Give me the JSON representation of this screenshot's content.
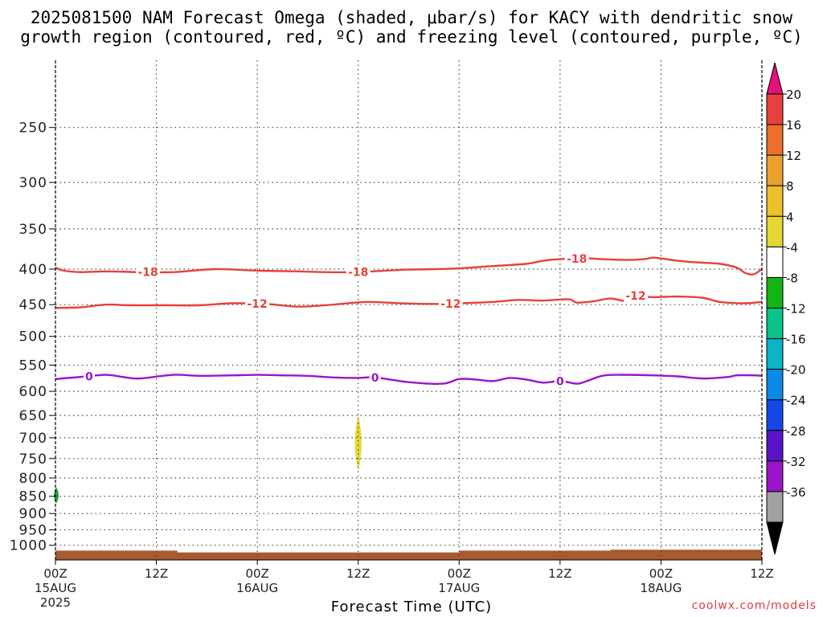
{
  "title": {
    "line1": "2025081500 NAM Forecast Omega (shaded, μbar/s) for KACY with dendritic snow",
    "line2": "growth region (contoured, red, ºC) and freezing level (contoured, purple, ºC)"
  },
  "chart_data": {
    "type": "contour",
    "xlabel": "Forecast Time (UTC)",
    "ylabel": "",
    "x_range_hours": [
      0,
      84
    ],
    "y_scale": "log-pressure",
    "y_range_hPa": [
      1050,
      200
    ],
    "y_ticks": [
      250,
      300,
      350,
      400,
      450,
      500,
      550,
      600,
      650,
      700,
      750,
      800,
      850,
      900,
      950,
      1000
    ],
    "x_ticks": [
      {
        "hour": 0,
        "label": "00Z",
        "date": "15AUG",
        "year": "2025"
      },
      {
        "hour": 12,
        "label": "12Z",
        "date": "",
        "year": ""
      },
      {
        "hour": 24,
        "label": "00Z",
        "date": "16AUG",
        "year": ""
      },
      {
        "hour": 36,
        "label": "12Z",
        "date": "",
        "year": ""
      },
      {
        "hour": 48,
        "label": "00Z",
        "date": "17AUG",
        "year": ""
      },
      {
        "hour": 60,
        "label": "12Z",
        "date": "",
        "year": ""
      },
      {
        "hour": 72,
        "label": "00Z",
        "date": "18AUG",
        "year": ""
      },
      {
        "hour": 84,
        "label": "12Z",
        "date": "",
        "year": ""
      }
    ],
    "grid": true,
    "contours": [
      {
        "value": -18,
        "label": "-18",
        "color": "#e8403c",
        "points": [
          [
            0,
            398
          ],
          [
            1,
            402
          ],
          [
            3,
            404
          ],
          [
            6,
            403
          ],
          [
            10,
            404
          ],
          [
            14,
            404
          ],
          [
            19,
            400
          ],
          [
            24,
            402
          ],
          [
            29,
            403
          ],
          [
            32,
            404
          ],
          [
            36,
            404
          ],
          [
            41,
            401
          ],
          [
            45,
            400
          ],
          [
            48,
            399
          ],
          [
            52,
            396
          ],
          [
            56,
            393
          ],
          [
            58,
            389
          ],
          [
            60,
            387
          ],
          [
            63,
            386
          ],
          [
            65,
            387
          ],
          [
            68,
            388
          ],
          [
            70,
            387
          ],
          [
            71,
            385
          ],
          [
            72,
            386
          ],
          [
            74,
            389
          ],
          [
            76,
            391
          ],
          [
            79,
            393
          ],
          [
            81,
            398
          ],
          [
            82,
            405
          ],
          [
            83,
            407
          ],
          [
            84,
            400
          ]
        ],
        "label_hours": [
          11,
          36,
          62
        ]
      },
      {
        "value": -12,
        "label": "-12",
        "color": "#e8403c",
        "points": [
          [
            0,
            455
          ],
          [
            3,
            454
          ],
          [
            6,
            450
          ],
          [
            9,
            451
          ],
          [
            13,
            451
          ],
          [
            17,
            451
          ],
          [
            21,
            448
          ],
          [
            25,
            449
          ],
          [
            29,
            453
          ],
          [
            33,
            450
          ],
          [
            37,
            446
          ],
          [
            41,
            448
          ],
          [
            45,
            449
          ],
          [
            48,
            448
          ],
          [
            52,
            446
          ],
          [
            55,
            443
          ],
          [
            58,
            444
          ],
          [
            61,
            442
          ],
          [
            62,
            447
          ],
          [
            64,
            445
          ],
          [
            66,
            441
          ],
          [
            68,
            445
          ],
          [
            69,
            437
          ],
          [
            71,
            439
          ],
          [
            74,
            438
          ],
          [
            77,
            440
          ],
          [
            79,
            446
          ],
          [
            82,
            448
          ],
          [
            84,
            446
          ]
        ],
        "label_hours": [
          24,
          47,
          69
        ]
      },
      {
        "value": 0,
        "label": "0",
        "color": "#9a14c8",
        "points": [
          [
            0,
            576
          ],
          [
            3,
            572
          ],
          [
            6,
            568
          ],
          [
            8,
            572
          ],
          [
            10,
            575
          ],
          [
            14,
            568
          ],
          [
            17,
            570
          ],
          [
            21,
            569
          ],
          [
            24,
            568
          ],
          [
            27,
            569
          ],
          [
            30,
            570
          ],
          [
            33,
            573
          ],
          [
            36,
            574
          ],
          [
            38,
            573
          ],
          [
            42,
            582
          ],
          [
            46,
            585
          ],
          [
            48,
            576
          ],
          [
            50,
            577
          ],
          [
            52,
            580
          ],
          [
            54,
            574
          ],
          [
            56,
            577
          ],
          [
            58,
            583
          ],
          [
            60,
            580
          ],
          [
            62,
            585
          ],
          [
            63,
            581
          ],
          [
            65,
            570
          ],
          [
            67,
            568
          ],
          [
            71,
            569
          ],
          [
            74,
            571
          ],
          [
            77,
            575
          ],
          [
            80,
            572
          ],
          [
            81,
            569
          ],
          [
            83,
            569
          ],
          [
            84,
            570
          ]
        ],
        "label_hours": [
          4,
          38,
          60
        ]
      }
    ],
    "shaded_regions": [
      {
        "name": "omega-positive-4-to-8",
        "hour": 36,
        "p_top": 650,
        "p_bottom": 780,
        "half_width_hours": 0.4,
        "color": "#e6d832"
      },
      {
        "name": "omega-negative-4-to-8",
        "hour": 0.1,
        "p_top": 825,
        "p_bottom": 870,
        "half_width_hours": 0.12,
        "color": "#1fa83a"
      }
    ],
    "terrain": {
      "color": "#a65a30",
      "segments": [
        [
          0,
          1018
        ],
        [
          14.5,
          1018
        ],
        [
          14.5,
          1024
        ],
        [
          48,
          1024
        ],
        [
          48,
          1018
        ],
        [
          66,
          1018
        ],
        [
          66,
          1015
        ],
        [
          84,
          1015
        ]
      ]
    },
    "colorbar": {
      "levels": [
        "20",
        "16",
        "12",
        "8",
        "4",
        "-4",
        "-8",
        "-12",
        "-16",
        "-20",
        "-24",
        "-28",
        "-32",
        "-36"
      ],
      "colors": [
        "#e5107a",
        "#e8403c",
        "#ea6f2c",
        "#eaa12c",
        "#eac02c",
        "#e6d832",
        "#ffffff",
        "#14b414",
        "#0ac28a",
        "#0ab4c4",
        "#0a8ae6",
        "#1448e6",
        "#5a14c8",
        "#9a14c8",
        "#a0a0a0",
        "#000000"
      ]
    }
  },
  "footer": {
    "credit": "coolwx.com/models"
  }
}
